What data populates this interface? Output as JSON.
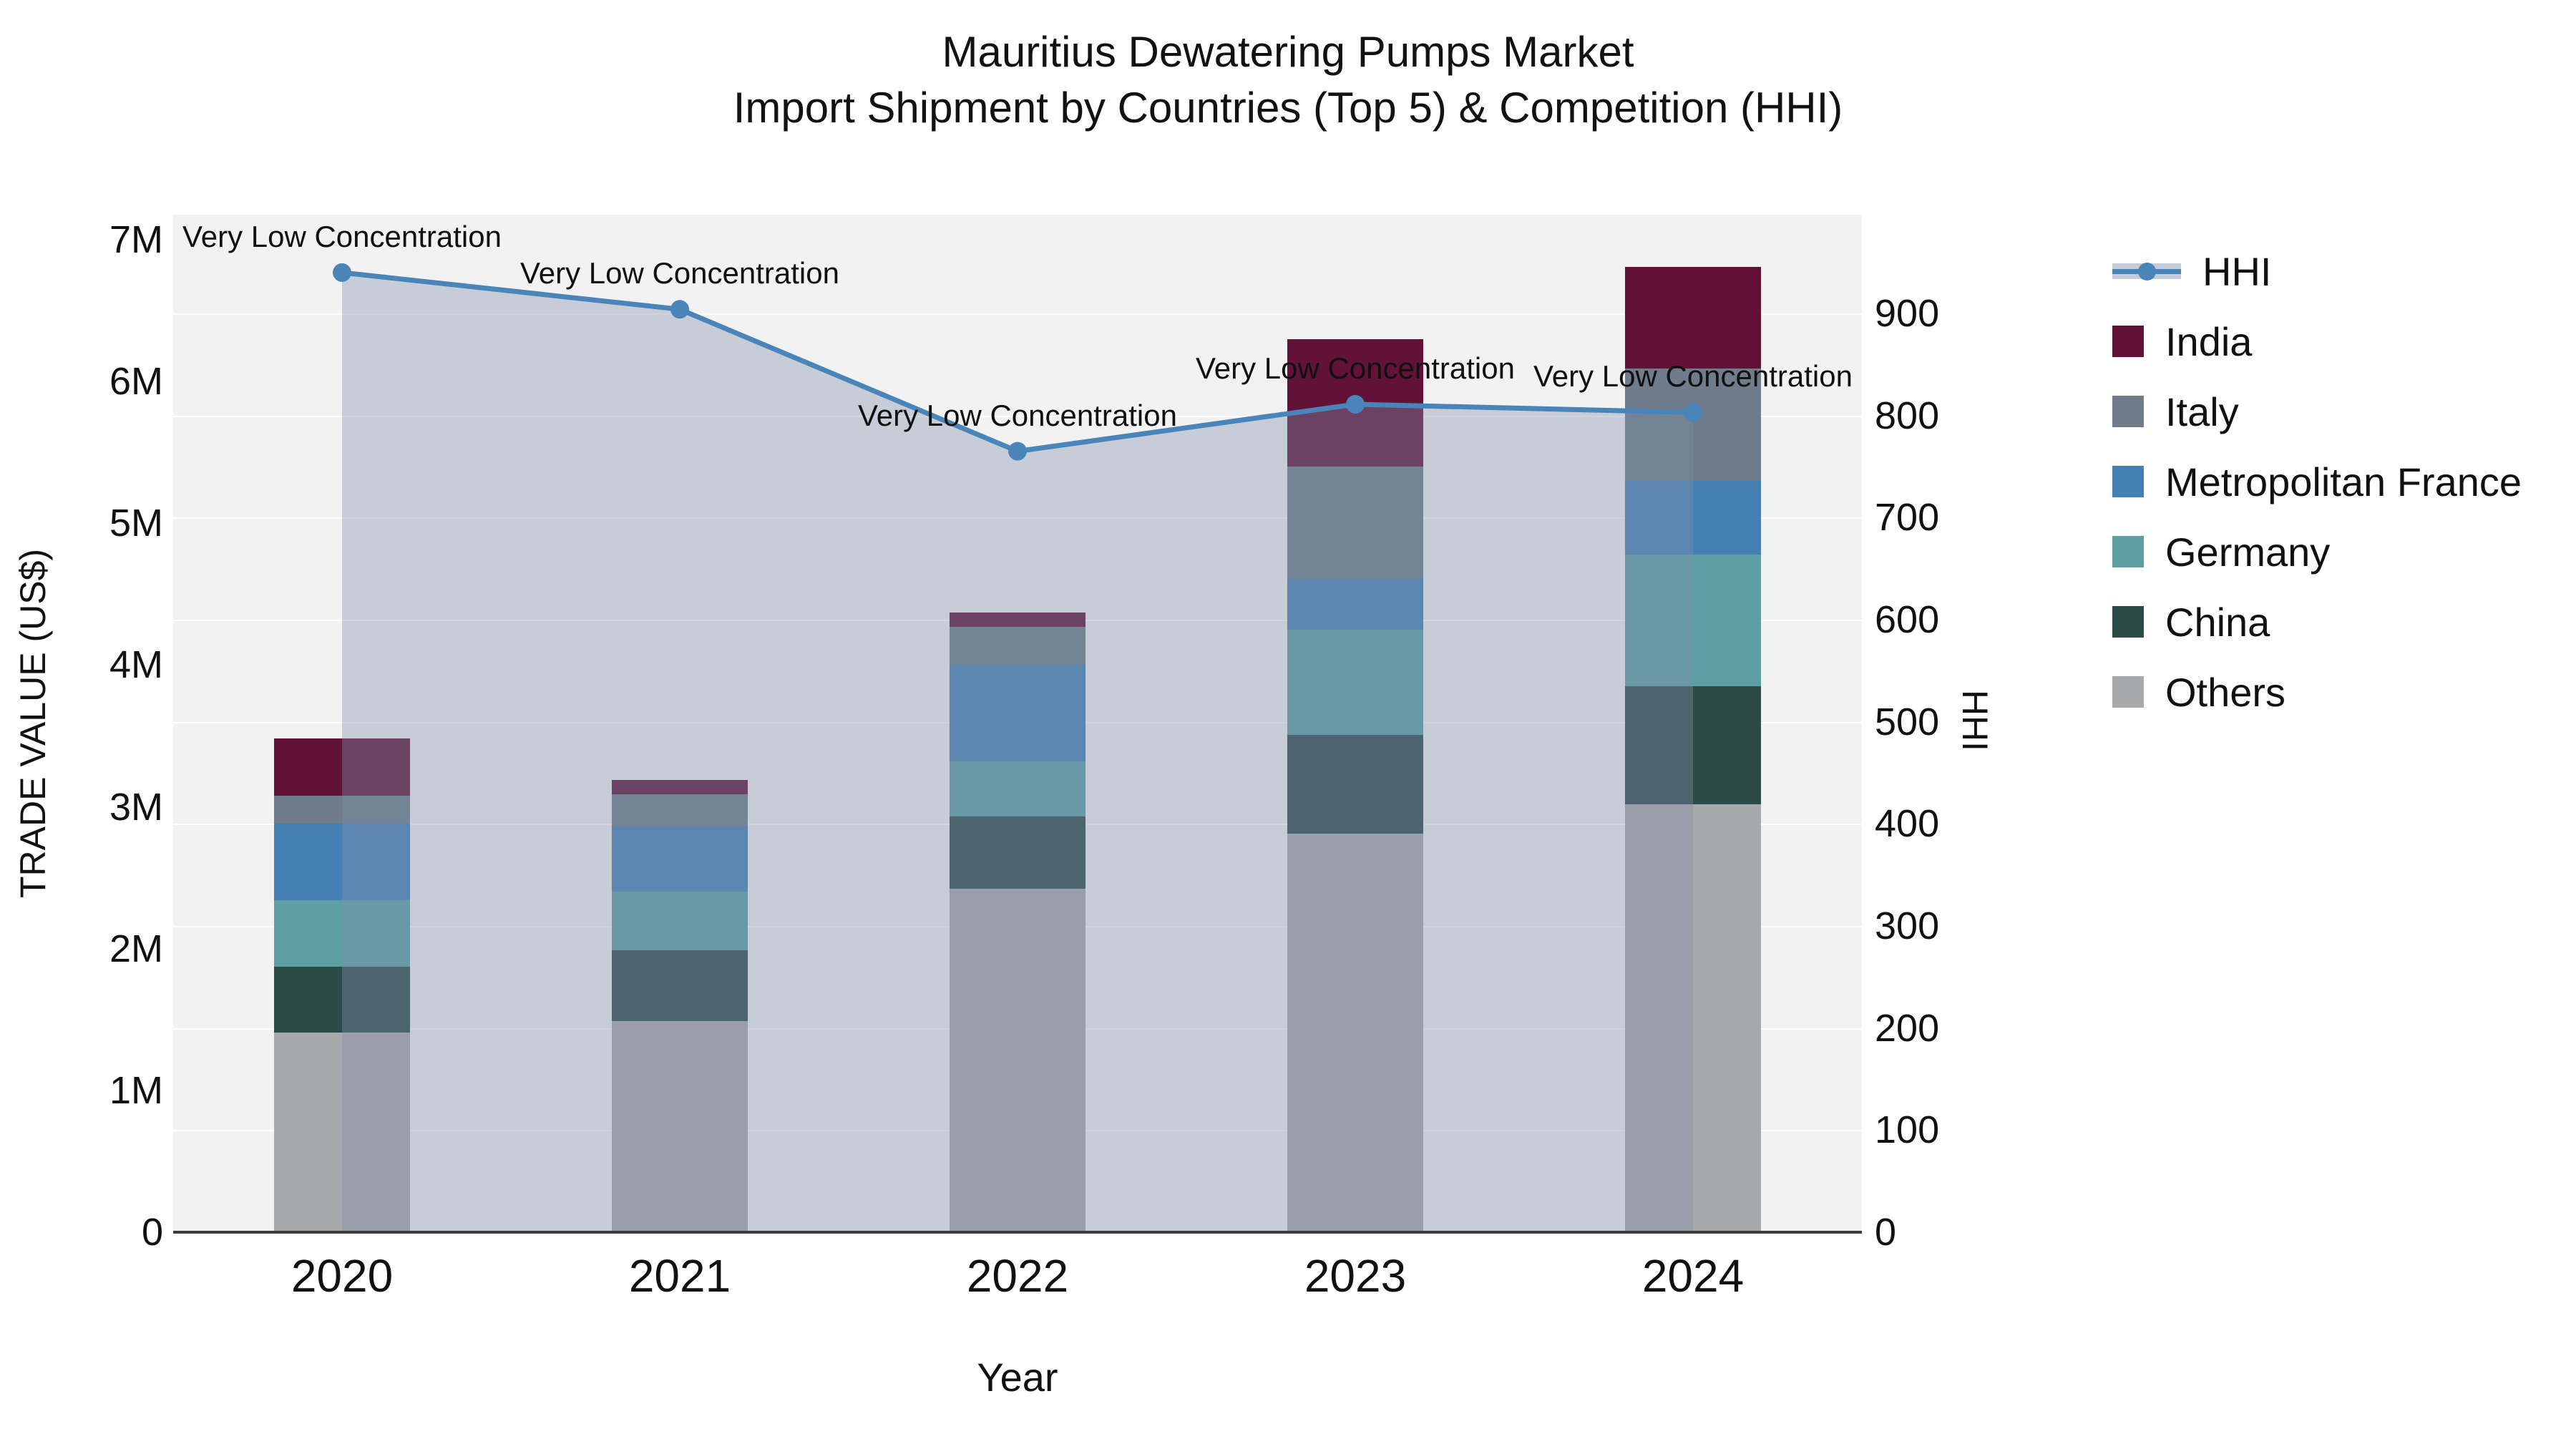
{
  "title": {
    "line1": "Mauritius Dewatering Pumps Market",
    "line2": "Import Shipment by Countries (Top 5) & Competition (HHI)"
  },
  "axes": {
    "left": {
      "title": "TRADE VALUE (US$)",
      "ticks": [
        "0",
        "1M",
        "2M",
        "3M",
        "4M",
        "5M",
        "6M",
        "7M"
      ]
    },
    "right": {
      "title": "HHI",
      "ticks": [
        "0",
        "100",
        "200",
        "300",
        "400",
        "500",
        "600",
        "700",
        "800",
        "900"
      ]
    },
    "x": {
      "title": "Year",
      "categories": [
        "2020",
        "2021",
        "2022",
        "2023",
        "2024"
      ]
    }
  },
  "legend": {
    "items": [
      {
        "label": "HHI",
        "type": "line",
        "color": "#4A85B9"
      },
      {
        "label": "India",
        "type": "swatch",
        "color": "#621236"
      },
      {
        "label": "Italy",
        "type": "swatch",
        "color": "#6E7C8C"
      },
      {
        "label": "Metropolitan France",
        "type": "swatch",
        "color": "#4480B4"
      },
      {
        "label": "Germany",
        "type": "swatch",
        "color": "#5C9EA1"
      },
      {
        "label": "China",
        "type": "swatch",
        "color": "#2C4A47"
      },
      {
        "label": "Others",
        "type": "swatch",
        "color": "#A8A9AA"
      }
    ]
  },
  "colors": {
    "hhi_line": "#4A85B9",
    "hhi_fill": "rgba(125,145,172,0.38)",
    "plot_bg": "#F2F2F3",
    "gridline": "#FFFFFF",
    "axis_line": "#3C3C3C",
    "text": "#111111"
  },
  "chart_data": {
    "type": "bar+line",
    "title": "Mauritius Dewatering Pumps Market — Import Shipment by Countries (Top 5) & Competition (HHI)",
    "xlabel": "Year",
    "ylabel_left": "TRADE VALUE (US$)",
    "ylabel_right": "HHI",
    "categories": [
      "2020",
      "2021",
      "2022",
      "2023",
      "2024"
    ],
    "bar_unit": "millions US$",
    "stack_order_bottom_to_top": [
      "Others",
      "China",
      "Germany",
      "Metropolitan France",
      "Italy",
      "India"
    ],
    "series": [
      {
        "name": "Others",
        "color": "#A8A9AA",
        "values": [
          1.41,
          1.49,
          2.42,
          2.81,
          3.02
        ]
      },
      {
        "name": "China",
        "color": "#2C4A47",
        "values": [
          0.46,
          0.5,
          0.51,
          0.7,
          0.83
        ]
      },
      {
        "name": "Germany",
        "color": "#5C9EA1",
        "values": [
          0.47,
          0.41,
          0.39,
          0.74,
          0.93
        ]
      },
      {
        "name": "Metropolitan France",
        "color": "#4480B4",
        "values": [
          0.54,
          0.46,
          0.68,
          0.36,
          0.52
        ]
      },
      {
        "name": "Italy",
        "color": "#6E7C8C",
        "values": [
          0.2,
          0.23,
          0.27,
          0.79,
          0.79
        ]
      },
      {
        "name": "India",
        "color": "#621236",
        "values": [
          0.4,
          0.1,
          0.1,
          0.9,
          0.72
        ]
      }
    ],
    "bar_totals": [
      3.48,
      3.19,
      4.37,
      6.3,
      6.81
    ],
    "line_series": {
      "name": "HHI",
      "axis": "right",
      "color": "#4A85B9",
      "values": [
        940,
        904,
        765,
        811,
        803
      ],
      "area_fill": true
    },
    "annotations": [
      {
        "text": "Very Low Concentration",
        "x": "2020"
      },
      {
        "text": "Very Low Concentration",
        "x": "2021"
      },
      {
        "text": "Very Low Concentration",
        "x": "2022"
      },
      {
        "text": "Very Low Concentration",
        "x": "2023"
      },
      {
        "text": "Very Low Concentration",
        "x": "2024"
      }
    ],
    "ylim_left": [
      0,
      7180000
    ],
    "ylim_right": [
      0,
      997
    ],
    "grid": "horizontal, every 100 HHI",
    "legend_position": "right"
  }
}
